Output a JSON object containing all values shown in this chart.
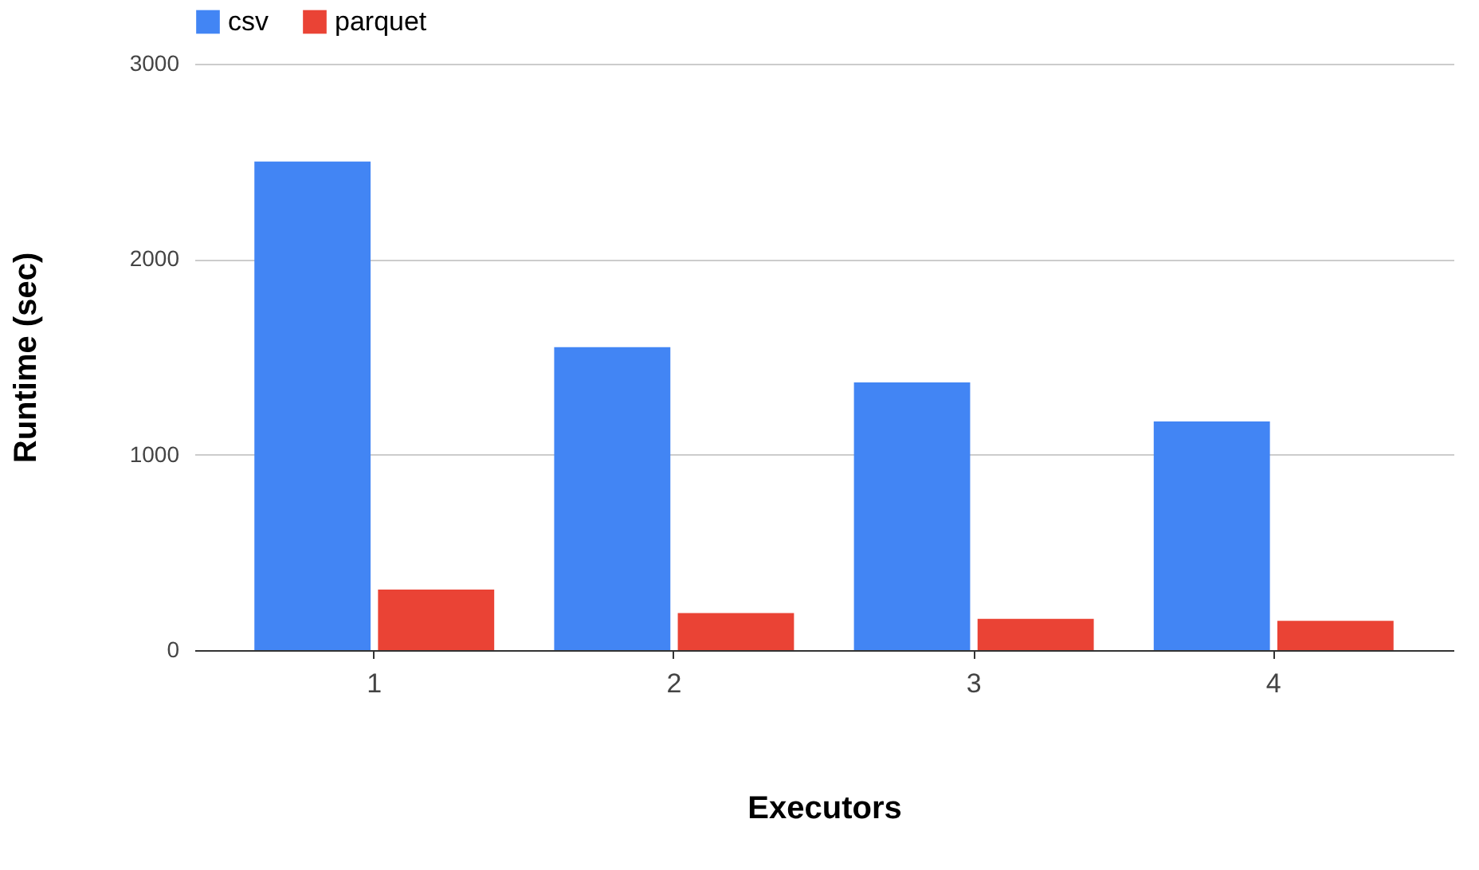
{
  "chart_data": {
    "type": "bar",
    "xlabel": "Executors",
    "ylabel": "Runtime (sec)",
    "categories": [
      "1",
      "2",
      "3",
      "4"
    ],
    "series": [
      {
        "name": "csv",
        "color": "#4285f4",
        "values": [
          2500,
          1550,
          1370,
          1170
        ]
      },
      {
        "name": "parquet",
        "color": "#ea4335",
        "values": [
          310,
          190,
          160,
          150
        ]
      }
    ],
    "ylim": [
      0,
      3000
    ],
    "yticks": [
      0,
      1000,
      2000,
      3000
    ],
    "grid": "y",
    "legend": "top"
  }
}
